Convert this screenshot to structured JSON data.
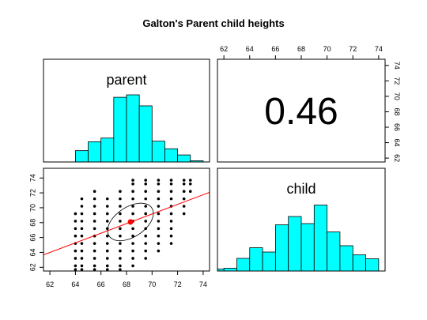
{
  "title": "Galton's Parent child heights",
  "chart_data": [
    {
      "type": "histogram",
      "label": "parent",
      "color": "#00ffff",
      "bins": [
        64,
        65,
        66,
        67,
        68,
        69,
        70,
        71,
        72,
        73,
        74
      ],
      "counts": [
        37,
        66,
        78,
        211,
        219,
        183,
        68,
        43,
        23,
        4
      ],
      "xlim": [
        61.5,
        74.5
      ],
      "ylim": [
        0,
        335
      ]
    },
    {
      "type": "correlation",
      "value": 0.46,
      "xlim": [
        61.5,
        74.5
      ],
      "xticks": [
        62,
        64,
        66,
        68,
        70,
        72,
        74
      ],
      "ylim": [
        61.5,
        74.8
      ],
      "yticks": [
        62,
        64,
        66,
        68,
        70,
        72,
        74
      ]
    },
    {
      "type": "scatter",
      "color": "#000000",
      "xlim": [
        61.5,
        74.5
      ],
      "xticks": [
        62,
        64,
        66,
        68,
        70,
        72,
        74
      ],
      "ylim": [
        61.5,
        75.3
      ],
      "yticks": [
        62,
        64,
        66,
        68,
        70,
        72,
        74
      ],
      "x": [
        64,
        64,
        64,
        64,
        64,
        64,
        64,
        64,
        64,
        64.5,
        64.5,
        64.5,
        64.5,
        64.5,
        64.5,
        64.5,
        64.5,
        64.5,
        64.5,
        64.5,
        65.5,
        65.5,
        65.5,
        65.5,
        65.5,
        65.5,
        65.5,
        65.5,
        65.5,
        65.5,
        65.5,
        65.5,
        66.5,
        66.5,
        66.5,
        66.5,
        66.5,
        66.5,
        66.5,
        66.5,
        66.5,
        66.5,
        66.5,
        67.5,
        67.5,
        67.5,
        67.5,
        67.5,
        67.5,
        67.5,
        67.5,
        67.5,
        67.5,
        67.5,
        67.5,
        68.5,
        68.5,
        68.5,
        68.5,
        68.5,
        68.5,
        68.5,
        68.5,
        68.5,
        68.5,
        68.5,
        68.5,
        68.5,
        69.5,
        69.5,
        69.5,
        69.5,
        69.5,
        69.5,
        69.5,
        69.5,
        69.5,
        69.5,
        69.5,
        69.5,
        70.5,
        70.5,
        70.5,
        70.5,
        70.5,
        70.5,
        70.5,
        70.5,
        70.5,
        70.5,
        70.5,
        71.5,
        71.5,
        71.5,
        71.5,
        71.5,
        71.5,
        71.5,
        71.5,
        71.5,
        71.5,
        72.5,
        72.5,
        72.5,
        72.5,
        72.5,
        72.5,
        73,
        73,
        73
      ],
      "y": [
        61.7,
        62.2,
        63.2,
        64.2,
        65.2,
        66.2,
        67.2,
        68.2,
        69.2,
        61.7,
        62.2,
        63.2,
        64.2,
        65.2,
        66.2,
        67.2,
        68.2,
        69.2,
        70.2,
        71.2,
        61.7,
        62.2,
        63.2,
        64.2,
        65.2,
        66.2,
        67.2,
        68.2,
        69.2,
        70.2,
        71.2,
        72.2,
        61.7,
        62.2,
        63.2,
        64.2,
        65.2,
        66.2,
        67.2,
        68.2,
        69.2,
        70.2,
        71.2,
        61.7,
        62.2,
        63.2,
        64.2,
        65.2,
        66.2,
        67.2,
        68.2,
        69.2,
        70.2,
        71.2,
        72.2,
        62.2,
        63.2,
        64.2,
        65.2,
        66.2,
        67.2,
        68.2,
        69.2,
        70.2,
        71.2,
        72.2,
        73.2,
        73.7,
        63.2,
        64.2,
        65.2,
        66.2,
        67.2,
        68.2,
        69.2,
        70.2,
        71.2,
        72.2,
        73.2,
        73.7,
        64.2,
        65.2,
        66.2,
        67.2,
        68.2,
        69.2,
        70.2,
        71.2,
        72.2,
        73.2,
        73.7,
        65.2,
        66.2,
        67.2,
        68.2,
        69.2,
        70.2,
        71.2,
        72.2,
        73.2,
        73.7,
        69.2,
        70.2,
        71.2,
        72.2,
        73.2,
        73.7,
        72.2,
        73.2,
        73.7
      ],
      "mean": {
        "x": 68.31,
        "y": 68.09,
        "color": "#ff0000"
      },
      "ellipse": {
        "sd_x": 1.79,
        "sd_y": 2.52,
        "r": 0.46
      },
      "regression": {
        "slope": 0.646,
        "intercept": 23.94,
        "color": "#ff0000"
      }
    },
    {
      "type": "histogram",
      "label": "child",
      "color": "#00ffff",
      "bins": [
        61,
        62,
        63,
        64,
        65,
        66,
        67,
        68,
        69,
        70,
        71,
        72,
        73,
        74
      ],
      "counts": [
        5,
        7,
        32,
        59,
        48,
        117,
        138,
        120,
        167,
        99,
        64,
        41,
        31
      ],
      "xlim": [
        61.5,
        74.5
      ],
      "ylim": [
        0,
        260
      ]
    }
  ]
}
